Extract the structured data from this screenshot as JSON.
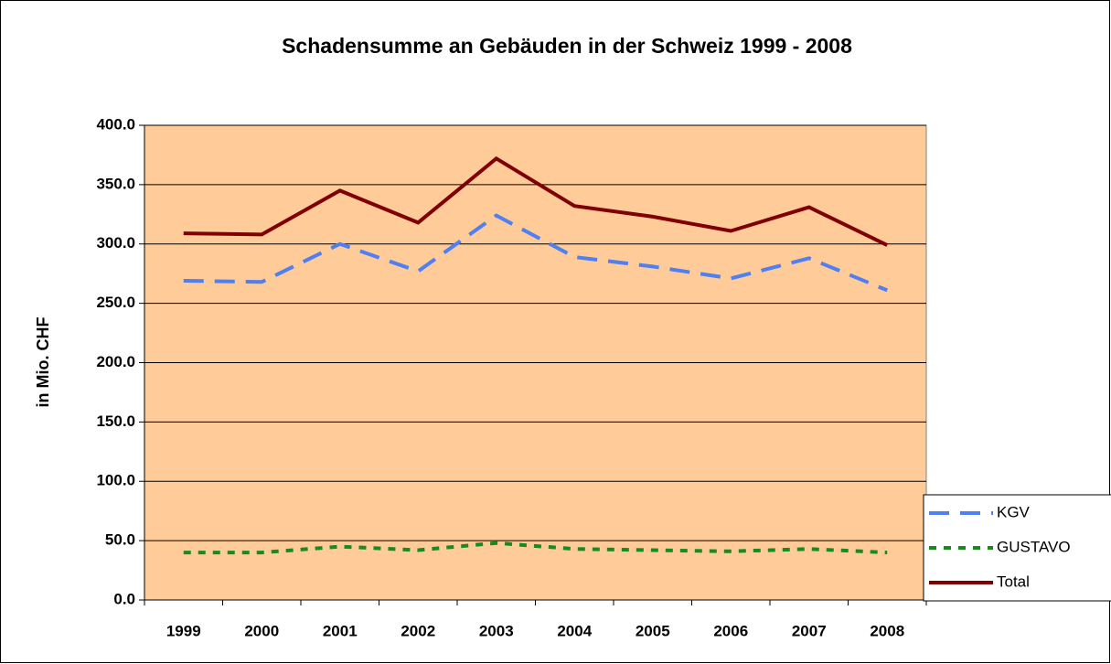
{
  "chart_data": {
    "type": "line",
    "title": "Schadensumme an Gebäuden in der Schweiz 1999 - 2008",
    "y_label": "in Mio. CHF",
    "categories": [
      "1999",
      "2000",
      "2001",
      "2002",
      "2003",
      "2004",
      "2005",
      "2006",
      "2007",
      "2008"
    ],
    "series": [
      {
        "name": "KGV",
        "color": "#4f7ff0",
        "dash": "dashed",
        "values": [
          269,
          268,
          300,
          277,
          324,
          289,
          281,
          271,
          288,
          261
        ]
      },
      {
        "name": "GUSTAVO",
        "color": "#1a8a1a",
        "dash": "dotted",
        "values": [
          40,
          40,
          45,
          42,
          48,
          43,
          42,
          41,
          43,
          40
        ]
      },
      {
        "name": "Total",
        "color": "#800000",
        "dash": "solid",
        "values": [
          309,
          308,
          345,
          318,
          372,
          332,
          323,
          311,
          331,
          299
        ]
      }
    ],
    "ylim": [
      0,
      400
    ],
    "yticks": [
      {
        "value": 0,
        "label": "0.0"
      },
      {
        "value": 50,
        "label": "50.0"
      },
      {
        "value": 100,
        "label": "100.0"
      },
      {
        "value": 150,
        "label": "150.0"
      },
      {
        "value": 200,
        "label": "200.0"
      },
      {
        "value": 250,
        "label": "250.0"
      },
      {
        "value": 300,
        "label": "300.0"
      },
      {
        "value": 350,
        "label": "350.0"
      },
      {
        "value": 400,
        "label": "400.0"
      }
    ],
    "grid": true,
    "plot_background": "#ffcc99",
    "legend": "right"
  }
}
